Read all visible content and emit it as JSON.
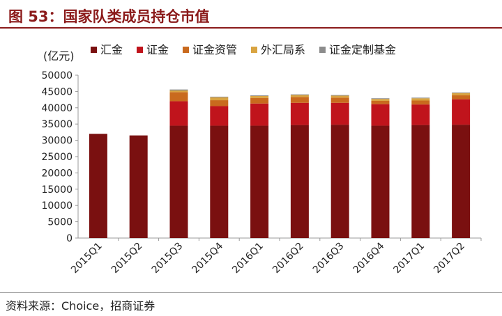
{
  "figure": {
    "title": "图 53：国家队类成员持仓市值",
    "source": "资料来源：Choice，招商证券"
  },
  "chart_data": {
    "type": "bar",
    "stacked": true,
    "ylabel": "(亿元)",
    "ylim": [
      0,
      50000
    ],
    "yticks": [
      0,
      5000,
      10000,
      15000,
      20000,
      25000,
      30000,
      35000,
      40000,
      45000,
      50000
    ],
    "legend_position": "top",
    "categories": [
      "2015Q1",
      "2015Q2",
      "2015Q3",
      "2015Q4",
      "2016Q1",
      "2016Q2",
      "2016Q3",
      "2016Q4",
      "2017Q1",
      "2017Q2"
    ],
    "series": [
      {
        "name": "汇金",
        "color": "#7a1010",
        "values": [
          32000,
          31500,
          34500,
          34500,
          34500,
          34700,
          34800,
          34500,
          34700,
          34800
        ]
      },
      {
        "name": "证金",
        "color": "#c0141c",
        "values": [
          0,
          0,
          7500,
          6000,
          6800,
          6800,
          6700,
          6600,
          6300,
          7800
        ]
      },
      {
        "name": "证金资管",
        "color": "#c96a1e",
        "values": [
          0,
          0,
          2800,
          1800,
          1700,
          1800,
          1600,
          1000,
          1200,
          1200
        ]
      },
      {
        "name": "外汇局系",
        "color": "#d9a441",
        "values": [
          0,
          0,
          500,
          900,
          600,
          600,
          600,
          600,
          700,
          700
        ]
      },
      {
        "name": "证金定制基金",
        "color": "#8c8c8c",
        "values": [
          0,
          0,
          300,
          200,
          200,
          200,
          200,
          200,
          200,
          200
        ]
      }
    ]
  }
}
